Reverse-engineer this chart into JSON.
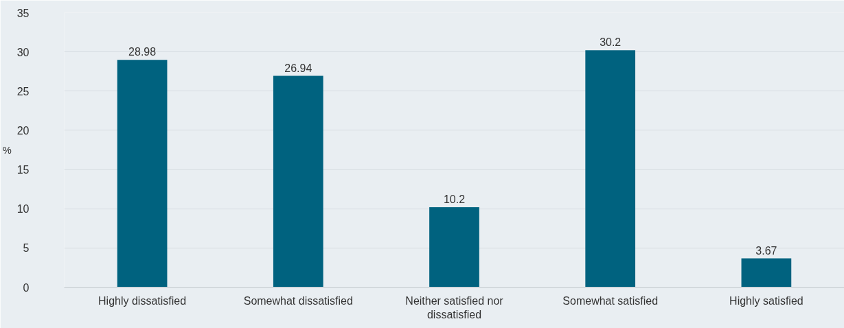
{
  "chart_data": {
    "type": "bar",
    "ylabel": "%",
    "categories": [
      "Highly dissatisfied",
      "Somewhat dissatisfied",
      "Neither satisfied nor dissatisfied",
      "Somewhat satisfied",
      "Highly satisfied"
    ],
    "values": [
      28.98,
      26.94,
      10.2,
      30.2,
      3.67
    ],
    "color": "#00627f",
    "ylim": [
      0,
      35
    ],
    "yticks": [
      0,
      5,
      10,
      15,
      20,
      25,
      30,
      35
    ],
    "grid": "y",
    "data_labels": true
  }
}
